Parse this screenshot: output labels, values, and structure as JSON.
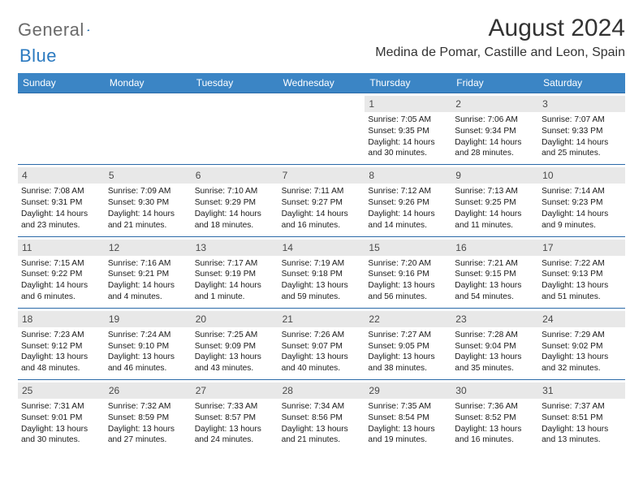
{
  "logo": {
    "text1": "General",
    "text2": "Blue"
  },
  "title": "August 2024",
  "location": "Medina de Pomar, Castille and Leon, Spain",
  "header_bg": "#3b85c5",
  "header_fg": "#ffffff",
  "daynum_bg": "#e8e8e8",
  "rule_color": "#2b6aa8",
  "text_color": "#1a1a1a",
  "day_names": [
    "Sunday",
    "Monday",
    "Tuesday",
    "Wednesday",
    "Thursday",
    "Friday",
    "Saturday"
  ],
  "weeks": [
    [
      {
        "n": "",
        "sr": "",
        "ss": "",
        "dl": ""
      },
      {
        "n": "",
        "sr": "",
        "ss": "",
        "dl": ""
      },
      {
        "n": "",
        "sr": "",
        "ss": "",
        "dl": ""
      },
      {
        "n": "",
        "sr": "",
        "ss": "",
        "dl": ""
      },
      {
        "n": "1",
        "sr": "Sunrise: 7:05 AM",
        "ss": "Sunset: 9:35 PM",
        "dl": "Daylight: 14 hours and 30 minutes."
      },
      {
        "n": "2",
        "sr": "Sunrise: 7:06 AM",
        "ss": "Sunset: 9:34 PM",
        "dl": "Daylight: 14 hours and 28 minutes."
      },
      {
        "n": "3",
        "sr": "Sunrise: 7:07 AM",
        "ss": "Sunset: 9:33 PM",
        "dl": "Daylight: 14 hours and 25 minutes."
      }
    ],
    [
      {
        "n": "4",
        "sr": "Sunrise: 7:08 AM",
        "ss": "Sunset: 9:31 PM",
        "dl": "Daylight: 14 hours and 23 minutes."
      },
      {
        "n": "5",
        "sr": "Sunrise: 7:09 AM",
        "ss": "Sunset: 9:30 PM",
        "dl": "Daylight: 14 hours and 21 minutes."
      },
      {
        "n": "6",
        "sr": "Sunrise: 7:10 AM",
        "ss": "Sunset: 9:29 PM",
        "dl": "Daylight: 14 hours and 18 minutes."
      },
      {
        "n": "7",
        "sr": "Sunrise: 7:11 AM",
        "ss": "Sunset: 9:27 PM",
        "dl": "Daylight: 14 hours and 16 minutes."
      },
      {
        "n": "8",
        "sr": "Sunrise: 7:12 AM",
        "ss": "Sunset: 9:26 PM",
        "dl": "Daylight: 14 hours and 14 minutes."
      },
      {
        "n": "9",
        "sr": "Sunrise: 7:13 AM",
        "ss": "Sunset: 9:25 PM",
        "dl": "Daylight: 14 hours and 11 minutes."
      },
      {
        "n": "10",
        "sr": "Sunrise: 7:14 AM",
        "ss": "Sunset: 9:23 PM",
        "dl": "Daylight: 14 hours and 9 minutes."
      }
    ],
    [
      {
        "n": "11",
        "sr": "Sunrise: 7:15 AM",
        "ss": "Sunset: 9:22 PM",
        "dl": "Daylight: 14 hours and 6 minutes."
      },
      {
        "n": "12",
        "sr": "Sunrise: 7:16 AM",
        "ss": "Sunset: 9:21 PM",
        "dl": "Daylight: 14 hours and 4 minutes."
      },
      {
        "n": "13",
        "sr": "Sunrise: 7:17 AM",
        "ss": "Sunset: 9:19 PM",
        "dl": "Daylight: 14 hours and 1 minute."
      },
      {
        "n": "14",
        "sr": "Sunrise: 7:19 AM",
        "ss": "Sunset: 9:18 PM",
        "dl": "Daylight: 13 hours and 59 minutes."
      },
      {
        "n": "15",
        "sr": "Sunrise: 7:20 AM",
        "ss": "Sunset: 9:16 PM",
        "dl": "Daylight: 13 hours and 56 minutes."
      },
      {
        "n": "16",
        "sr": "Sunrise: 7:21 AM",
        "ss": "Sunset: 9:15 PM",
        "dl": "Daylight: 13 hours and 54 minutes."
      },
      {
        "n": "17",
        "sr": "Sunrise: 7:22 AM",
        "ss": "Sunset: 9:13 PM",
        "dl": "Daylight: 13 hours and 51 minutes."
      }
    ],
    [
      {
        "n": "18",
        "sr": "Sunrise: 7:23 AM",
        "ss": "Sunset: 9:12 PM",
        "dl": "Daylight: 13 hours and 48 minutes."
      },
      {
        "n": "19",
        "sr": "Sunrise: 7:24 AM",
        "ss": "Sunset: 9:10 PM",
        "dl": "Daylight: 13 hours and 46 minutes."
      },
      {
        "n": "20",
        "sr": "Sunrise: 7:25 AM",
        "ss": "Sunset: 9:09 PM",
        "dl": "Daylight: 13 hours and 43 minutes."
      },
      {
        "n": "21",
        "sr": "Sunrise: 7:26 AM",
        "ss": "Sunset: 9:07 PM",
        "dl": "Daylight: 13 hours and 40 minutes."
      },
      {
        "n": "22",
        "sr": "Sunrise: 7:27 AM",
        "ss": "Sunset: 9:05 PM",
        "dl": "Daylight: 13 hours and 38 minutes."
      },
      {
        "n": "23",
        "sr": "Sunrise: 7:28 AM",
        "ss": "Sunset: 9:04 PM",
        "dl": "Daylight: 13 hours and 35 minutes."
      },
      {
        "n": "24",
        "sr": "Sunrise: 7:29 AM",
        "ss": "Sunset: 9:02 PM",
        "dl": "Daylight: 13 hours and 32 minutes."
      }
    ],
    [
      {
        "n": "25",
        "sr": "Sunrise: 7:31 AM",
        "ss": "Sunset: 9:01 PM",
        "dl": "Daylight: 13 hours and 30 minutes."
      },
      {
        "n": "26",
        "sr": "Sunrise: 7:32 AM",
        "ss": "Sunset: 8:59 PM",
        "dl": "Daylight: 13 hours and 27 minutes."
      },
      {
        "n": "27",
        "sr": "Sunrise: 7:33 AM",
        "ss": "Sunset: 8:57 PM",
        "dl": "Daylight: 13 hours and 24 minutes."
      },
      {
        "n": "28",
        "sr": "Sunrise: 7:34 AM",
        "ss": "Sunset: 8:56 PM",
        "dl": "Daylight: 13 hours and 21 minutes."
      },
      {
        "n": "29",
        "sr": "Sunrise: 7:35 AM",
        "ss": "Sunset: 8:54 PM",
        "dl": "Daylight: 13 hours and 19 minutes."
      },
      {
        "n": "30",
        "sr": "Sunrise: 7:36 AM",
        "ss": "Sunset: 8:52 PM",
        "dl": "Daylight: 13 hours and 16 minutes."
      },
      {
        "n": "31",
        "sr": "Sunrise: 7:37 AM",
        "ss": "Sunset: 8:51 PM",
        "dl": "Daylight: 13 hours and 13 minutes."
      }
    ]
  ]
}
